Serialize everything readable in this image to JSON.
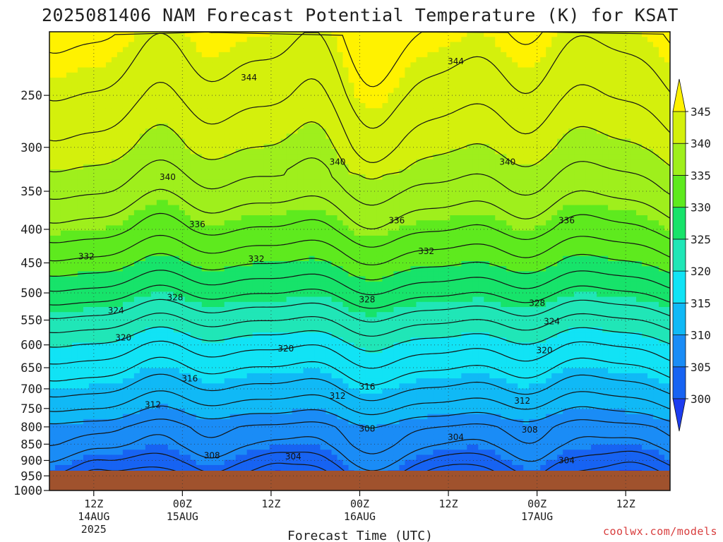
{
  "chart_data": {
    "type": "heatmap",
    "title": "2025081406 NAM Forecast Potential Temperature (K) for KSAT",
    "xlabel": "Forecast Time (UTC)",
    "ylabel": "",
    "y_scale": "log-pressure",
    "y_ticks": [
      "250",
      "300",
      "350",
      "400",
      "450",
      "500",
      "550",
      "600",
      "650",
      "700",
      "750",
      "800",
      "850",
      "900",
      "950",
      "1000"
    ],
    "ylim": [
      1000,
      200
    ],
    "x_ticks": [
      {
        "hour": "12Z",
        "date": "14AUG",
        "year": "2025"
      },
      {
        "hour": "00Z",
        "date": "15AUG",
        "year": ""
      },
      {
        "hour": "12Z",
        "date": "",
        "year": ""
      },
      {
        "hour": "00Z",
        "date": "16AUG",
        "year": ""
      },
      {
        "hour": "12Z",
        "date": "",
        "year": ""
      },
      {
        "hour": "00Z",
        "date": "17AUG",
        "year": ""
      },
      {
        "hour": "12Z",
        "date": "",
        "year": ""
      }
    ],
    "xlim_hours": [
      0,
      84
    ],
    "x_tick_hours": [
      6,
      18,
      30,
      42,
      54,
      66,
      78
    ],
    "colorbar": {
      "levels": [
        300,
        305,
        310,
        315,
        320,
        325,
        330,
        335,
        340,
        345
      ],
      "labels": [
        "300",
        "305",
        "310",
        "315",
        "320",
        "325",
        "330",
        "335",
        "340",
        "345"
      ],
      "colors": [
        "#1d3df0",
        "#1763f2",
        "#1a8cf6",
        "#10b9f6",
        "#11e3f5",
        "#20e6b7",
        "#17e36a",
        "#5eea1e",
        "#9fef1c",
        "#d4f00c",
        "#fff200"
      ],
      "extend": "both"
    },
    "contour_labels": [
      {
        "value": "344",
        "hour": 27,
        "hpa": 235
      },
      {
        "value": "344",
        "hour": 55,
        "hpa": 222
      },
      {
        "value": "340",
        "hour": 16,
        "hpa": 333
      },
      {
        "value": "340",
        "hour": 39,
        "hpa": 316
      },
      {
        "value": "340",
        "hour": 62,
        "hpa": 316
      },
      {
        "value": "336",
        "hour": 20,
        "hpa": 393
      },
      {
        "value": "336",
        "hour": 47,
        "hpa": 388
      },
      {
        "value": "336",
        "hour": 70,
        "hpa": 388
      },
      {
        "value": "332",
        "hour": 5,
        "hpa": 440
      },
      {
        "value": "332",
        "hour": 28,
        "hpa": 444
      },
      {
        "value": "332",
        "hour": 51,
        "hpa": 432
      },
      {
        "value": "328",
        "hour": 17,
        "hpa": 508
      },
      {
        "value": "328",
        "hour": 43,
        "hpa": 512
      },
      {
        "value": "328",
        "hour": 66,
        "hpa": 518
      },
      {
        "value": "324",
        "hour": 9,
        "hpa": 532
      },
      {
        "value": "324",
        "hour": 68,
        "hpa": 553
      },
      {
        "value": "320",
        "hour": 10,
        "hpa": 585
      },
      {
        "value": "320",
        "hour": 32,
        "hpa": 608
      },
      {
        "value": "320",
        "hour": 67,
        "hpa": 612
      },
      {
        "value": "316",
        "hour": 19,
        "hpa": 675
      },
      {
        "value": "316",
        "hour": 43,
        "hpa": 695
      },
      {
        "value": "312",
        "hour": 14,
        "hpa": 740
      },
      {
        "value": "312",
        "hour": 39,
        "hpa": 718
      },
      {
        "value": "312",
        "hour": 64,
        "hpa": 730
      },
      {
        "value": "308",
        "hour": 43,
        "hpa": 805
      },
      {
        "value": "308",
        "hour": 65,
        "hpa": 808
      },
      {
        "value": "308",
        "hour": 22,
        "hpa": 885
      },
      {
        "value": "304",
        "hour": 55,
        "hpa": 830
      },
      {
        "value": "304",
        "hour": 33,
        "hpa": 888
      },
      {
        "value": "304",
        "hour": 70,
        "hpa": 900
      }
    ],
    "grid": true,
    "ground_color": "#a0522d",
    "credit": "coolwx.com/models"
  }
}
